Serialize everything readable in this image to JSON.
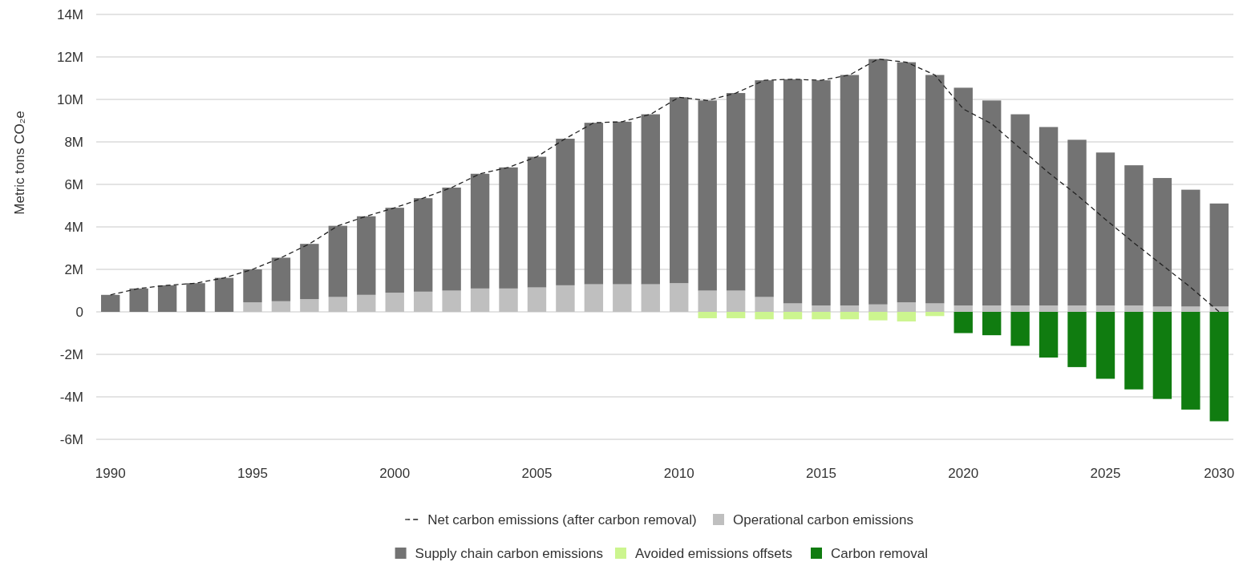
{
  "chart_data": {
    "type": "bar",
    "stacked": true,
    "ylabel": "Metric tons CO₂e",
    "categories": [
      "1990",
      null,
      null,
      null,
      null,
      "1995",
      null,
      null,
      null,
      null,
      "2000",
      null,
      null,
      null,
      null,
      "2005",
      null,
      null,
      null,
      null,
      "2010",
      null,
      null,
      null,
      null,
      "2015",
      null,
      null,
      null,
      null,
      "2020",
      null,
      null,
      null,
      null,
      "2025",
      null,
      null,
      null,
      "2030"
    ],
    "series": [
      {
        "name": "Net carbon emissions (after carbon removal)",
        "type": "line",
        "line_style": "dashed",
        "color": "#222222",
        "values": [
          0.8,
          1.1,
          1.25,
          1.35,
          1.6,
          2.0,
          2.55,
          3.2,
          4.05,
          4.5,
          4.9,
          5.35,
          5.85,
          6.5,
          6.8,
          7.3,
          8.15,
          8.9,
          8.95,
          9.3,
          10.1,
          9.95,
          10.3,
          10.9,
          10.95,
          10.9,
          11.15,
          11.9,
          11.75,
          11.15,
          9.55,
          8.85,
          7.7,
          6.55,
          5.5,
          4.35,
          3.25,
          2.2,
          1.15,
          0
        ]
      },
      {
        "name": "Operational carbon emissions",
        "color": "#bfbfbf",
        "values": [
          null,
          null,
          null,
          null,
          null,
          0.45,
          0.5,
          0.6,
          0.7,
          0.8,
          0.9,
          0.95,
          1.0,
          1.1,
          1.1,
          1.15,
          1.25,
          1.3,
          1.3,
          1.3,
          1.35,
          1.0,
          1.0,
          0.7,
          0.4,
          0.3,
          0.3,
          0.35,
          0.45,
          0.4,
          0.3,
          0.3,
          0.3,
          0.3,
          0.3,
          0.3,
          0.3,
          0.25,
          0.25,
          0.25
        ]
      },
      {
        "name": "Supply chain carbon emissions",
        "color": "#737373",
        "values": [
          0.8,
          1.1,
          1.25,
          1.35,
          1.6,
          1.55,
          2.05,
          2.6,
          3.35,
          3.7,
          4.0,
          4.4,
          4.85,
          5.4,
          5.7,
          6.15,
          6.9,
          7.6,
          7.65,
          8.0,
          8.75,
          8.95,
          9.3,
          10.2,
          10.55,
          10.6,
          10.85,
          11.55,
          11.3,
          10.75,
          10.25,
          9.65,
          9.0,
          8.4,
          7.8,
          7.2,
          6.6,
          6.05,
          5.5,
          4.85
        ]
      },
      {
        "name": "Avoided emissions offsets",
        "color": "#ccf58f",
        "values": [
          null,
          null,
          null,
          null,
          null,
          null,
          null,
          null,
          null,
          null,
          null,
          null,
          null,
          null,
          null,
          null,
          null,
          null,
          null,
          null,
          null,
          -0.3,
          -0.3,
          -0.35,
          -0.35,
          -0.35,
          -0.35,
          -0.4,
          -0.45,
          -0.2,
          null,
          null,
          null,
          null,
          null,
          null,
          null,
          null,
          null,
          null
        ]
      },
      {
        "name": "Carbon removal",
        "color": "#107c10",
        "values": [
          null,
          null,
          null,
          null,
          null,
          null,
          null,
          null,
          null,
          null,
          null,
          null,
          null,
          null,
          null,
          null,
          null,
          null,
          null,
          null,
          null,
          null,
          null,
          null,
          null,
          null,
          null,
          null,
          null,
          null,
          -1.0,
          -1.1,
          -1.6,
          -2.15,
          -2.6,
          -3.15,
          -3.65,
          -4.1,
          -4.6,
          -5.15
        ]
      }
    ],
    "ylim": [
      -6,
      14
    ],
    "yticks": [
      {
        "value": -6,
        "label": "-6M"
      },
      {
        "value": -4,
        "label": "-4M"
      },
      {
        "value": -2,
        "label": "-2M"
      },
      {
        "value": 0,
        "label": "0"
      },
      {
        "value": 2,
        "label": "2M"
      },
      {
        "value": 4,
        "label": "4M"
      },
      {
        "value": 6,
        "label": "6M"
      },
      {
        "value": 8,
        "label": "8M"
      },
      {
        "value": 10,
        "label": "10M"
      },
      {
        "value": 12,
        "label": "12M"
      },
      {
        "value": 14,
        "label": "14M"
      }
    ],
    "grid": "y",
    "legend": "bottom"
  }
}
